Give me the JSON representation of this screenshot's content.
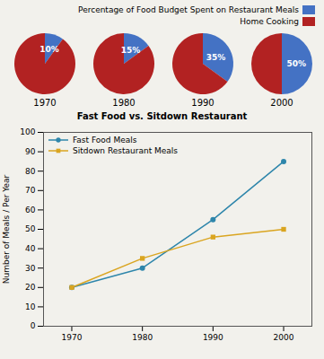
{
  "chart_data": [
    {
      "type": "pie",
      "xlabel": "1970",
      "categories": [
        "Percentage of Food Budget Spent on Restaurant Meals",
        "Home Cooking"
      ],
      "values": [
        10,
        90
      ],
      "value_labels": [
        "10%",
        null
      ],
      "colors": [
        "#4472C4",
        "#B22222"
      ],
      "data_labels": true,
      "legend": "upper right"
    },
    {
      "type": "pie",
      "xlabel": "1980",
      "categories": [
        "Percentage of Food Budget Spent on Restaurant Meals",
        "Home Cooking"
      ],
      "values": [
        15,
        85
      ],
      "value_labels": [
        "15%",
        null
      ],
      "colors": [
        "#4472C4",
        "#B22222"
      ],
      "data_labels": true,
      "legend": "upper right"
    },
    {
      "type": "pie",
      "xlabel": "1990",
      "categories": [
        "Percentage of Food Budget Spent on Restaurant Meals",
        "Home Cooking"
      ],
      "values": [
        35,
        65
      ],
      "value_labels": [
        "35%",
        null
      ],
      "colors": [
        "#4472C4",
        "#B22222"
      ],
      "data_labels": true,
      "legend": "upper right"
    },
    {
      "type": "pie",
      "xlabel": "2000",
      "categories": [
        "Percentage of Food Budget Spent on Restaurant Meals",
        "Home Cooking"
      ],
      "values": [
        50,
        50
      ],
      "value_labels": [
        "50%",
        null
      ],
      "colors": [
        "#4472C4",
        "#B22222"
      ],
      "data_labels": true,
      "legend": "upper right"
    },
    {
      "type": "line",
      "title": "Fast Food vs. Sitdown Restaurant",
      "x": [
        1970,
        1980,
        1990,
        2000
      ],
      "series": [
        {
          "name": "Fast Food Meals",
          "color": "#2E86AB",
          "marker": "circle",
          "values": [
            20,
            30,
            55,
            85
          ]
        },
        {
          "name": "Sitdown Restaurant Meals",
          "color": "#DAA520",
          "marker": "square",
          "values": [
            20,
            35,
            46,
            50
          ]
        }
      ],
      "xlim": [
        1966,
        2004
      ],
      "xticks": [
        1970,
        1980,
        1990,
        2000
      ],
      "ylim": [
        0,
        100
      ],
      "yticks": [
        0,
        10,
        20,
        30,
        40,
        50,
        60,
        70,
        80,
        90,
        100
      ],
      "ylabel": "Number of Meals / Per Year",
      "legend": "upper left",
      "grid": false
    }
  ]
}
